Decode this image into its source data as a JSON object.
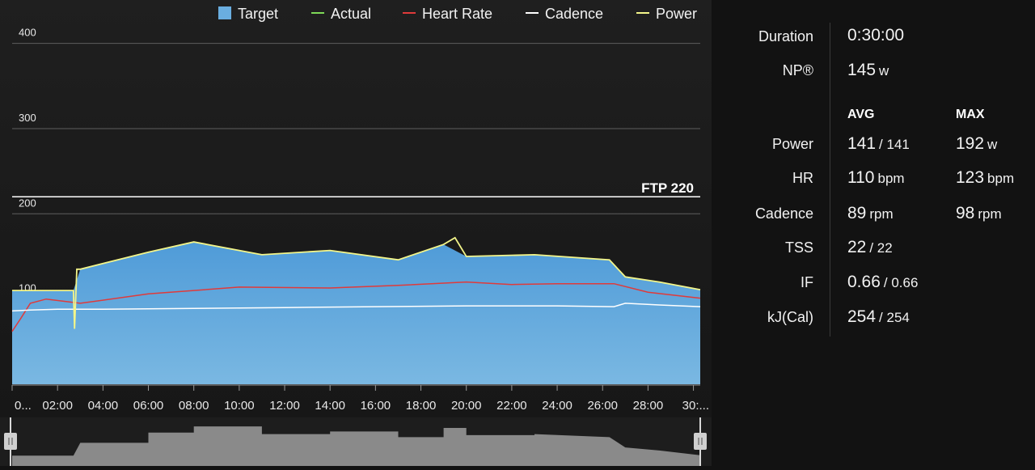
{
  "chart_data": {
    "type": "area",
    "legend": [
      {
        "name": "Target",
        "color": "#6aaee0",
        "symbol": "square"
      },
      {
        "name": "Actual",
        "color": "#7ed957",
        "symbol": "line"
      },
      {
        "name": "Heart Rate",
        "color": "#e03a3a",
        "symbol": "line"
      },
      {
        "name": "Cadence",
        "color": "#ffffff",
        "symbol": "line"
      },
      {
        "name": "Power",
        "color": "#f3f58a",
        "symbol": "line"
      }
    ],
    "legend_position": "top-right",
    "y_ticks": [
      "100",
      "200",
      "300",
      "400"
    ],
    "ylim": [
      0,
      430
    ],
    "xlim": [
      0,
      30.3
    ],
    "x_ticks": [
      "0...",
      "02:00",
      "04:00",
      "06:00",
      "08:00",
      "10:00",
      "12:00",
      "14:00",
      "16:00",
      "18:00",
      "20:00",
      "22:00",
      "24:00",
      "26:00",
      "28:00",
      "30:..."
    ],
    "ftp": {
      "label": "FTP 220",
      "value": 220
    },
    "series": [
      {
        "name": "Target",
        "x": [
          0,
          2.7,
          3.0,
          6.0,
          8.0,
          11.0,
          14.0,
          17.0,
          19.0,
          20.0,
          23.0,
          26.3,
          27.0,
          28.5,
          30.3
        ],
        "y": [
          110,
          110,
          135,
          155,
          167,
          152,
          157,
          146,
          164,
          150,
          152,
          146,
          126,
          120,
          111
        ]
      },
      {
        "name": "Heart Rate",
        "x": [
          0,
          0.4,
          0.8,
          1.5,
          3.0,
          6.0,
          10.0,
          14.0,
          17.0,
          20.0,
          22.0,
          24.0,
          26.5,
          28.0,
          30.3
        ],
        "y": [
          62,
          78,
          95,
          100,
          95,
          106,
          114,
          113,
          116,
          120,
          117,
          118,
          118,
          108,
          101
        ]
      },
      {
        "name": "Cadence",
        "x": [
          0,
          0.8,
          2.0,
          4.0,
          8.0,
          12.0,
          16.0,
          20.0,
          24.0,
          26.5,
          27.0,
          28.5,
          30.3
        ],
        "y": [
          86,
          87,
          88,
          88,
          89,
          90,
          91,
          92,
          92,
          91,
          95,
          93,
          91
        ]
      },
      {
        "name": "Power",
        "x": [
          0,
          2.7,
          2.75,
          2.85,
          3.0,
          6.0,
          8.0,
          11.0,
          14.0,
          17.0,
          19.0,
          19.5,
          20.0,
          23.0,
          26.3,
          27.0,
          28.5,
          30.3
        ],
        "y": [
          110,
          110,
          65,
          135,
          135,
          155,
          167,
          152,
          157,
          146,
          164,
          172,
          150,
          152,
          146,
          126,
          120,
          111
        ]
      }
    ]
  },
  "stats": {
    "duration_label": "Duration",
    "duration_value": "0:30:00",
    "np_label": "NP®",
    "np_value": "145",
    "np_unit": "w",
    "avg_header": "AVG",
    "max_header": "MAX",
    "rows": [
      {
        "label": "Power",
        "avg": "141",
        "avg_secondary": "/ 141",
        "max": "192",
        "max_unit": "w"
      },
      {
        "label": "HR",
        "avg": "110",
        "avg_unit": "bpm",
        "max": "123",
        "max_unit": "bpm"
      },
      {
        "label": "Cadence",
        "avg": "89",
        "avg_unit": "rpm",
        "max": "98",
        "max_unit": "rpm"
      },
      {
        "label": "TSS",
        "avg": "22",
        "avg_secondary": "/ 22"
      },
      {
        "label": "IF",
        "avg": "0.66",
        "avg_secondary": "/ 0.66"
      },
      {
        "label": "kJ(Cal)",
        "avg": "254",
        "avg_secondary": "/ 254"
      }
    ]
  },
  "colors": {
    "grid": "#5e5e5e",
    "ftp_line": "#ffffff",
    "overview_fill": "#8a8a8a",
    "overview_bg": "#1d1d1d"
  }
}
